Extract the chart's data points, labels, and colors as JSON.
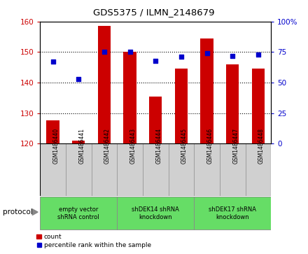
{
  "title": "GDS5375 / ILMN_2148679",
  "samples": [
    "GSM1486440",
    "GSM1486441",
    "GSM1486442",
    "GSM1486443",
    "GSM1486444",
    "GSM1486445",
    "GSM1486446",
    "GSM1486447",
    "GSM1486448"
  ],
  "counts": [
    127.5,
    121.0,
    158.5,
    150.0,
    135.5,
    144.5,
    154.5,
    146.0,
    144.5
  ],
  "percentiles": [
    67,
    53,
    75,
    75,
    68,
    71,
    74,
    72,
    73
  ],
  "ylim_left": [
    120,
    160
  ],
  "ylim_right": [
    0,
    100
  ],
  "yticks_left": [
    120,
    130,
    140,
    150,
    160
  ],
  "yticks_right": [
    0,
    25,
    50,
    75,
    100
  ],
  "bar_color": "#cc0000",
  "dot_color": "#0000cc",
  "bar_bottom": 120,
  "groups": [
    {
      "label": "empty vector\nshRNA control",
      "start": 0,
      "end": 3,
      "color": "#66dd66"
    },
    {
      "label": "shDEK14 shRNA\nknockdown",
      "start": 3,
      "end": 6,
      "color": "#66dd66"
    },
    {
      "label": "shDEK17 shRNA\nknockdown",
      "start": 6,
      "end": 9,
      "color": "#66dd66"
    }
  ],
  "protocol_label": "protocol",
  "legend_count": "count",
  "legend_percentile": "percentile rank within the sample",
  "bar_color_hex": "#cc0000",
  "dot_color_hex": "#0000cc",
  "tick_color_left": "#cc0000",
  "tick_color_right": "#0000cc",
  "cell_bg_color": "#d0d0d0",
  "cell_edge_color": "#999999"
}
